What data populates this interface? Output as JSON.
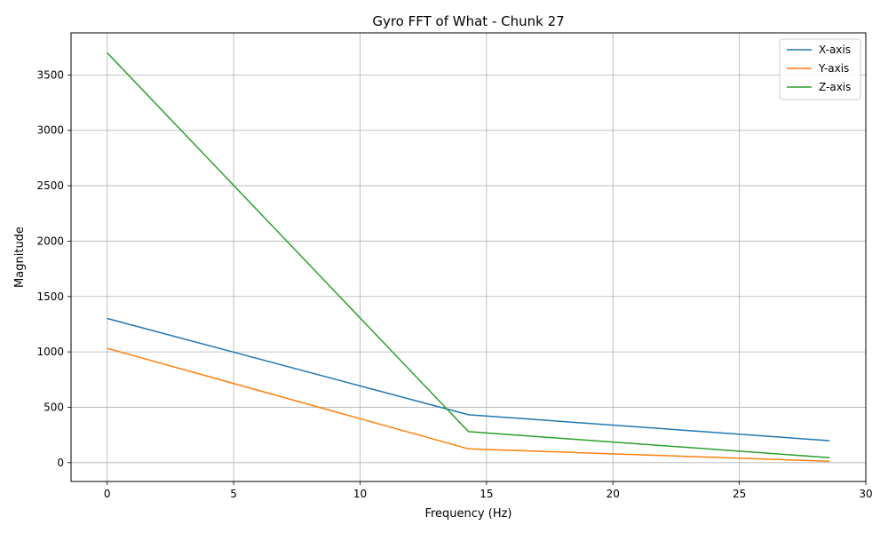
{
  "chart_data": {
    "type": "line",
    "title": "Gyro FFT of What - Chunk 27",
    "xlabel": "Frequency (Hz)",
    "ylabel": "Magnitude",
    "xlim": [
      -1.43,
      30
    ],
    "ylim": [
      -170,
      3880
    ],
    "xticks": [
      0,
      5,
      10,
      15,
      20,
      25,
      30
    ],
    "yticks": [
      0,
      500,
      1000,
      1500,
      2000,
      2500,
      3000,
      3500
    ],
    "grid": true,
    "legend_position": "top-right",
    "x": [
      0,
      14.29,
      28.57
    ],
    "series": [
      {
        "name": "X-axis",
        "color": "#1f77b4",
        "values": [
          1302,
          432,
          198
        ]
      },
      {
        "name": "Y-axis",
        "color": "#ff7f0e",
        "values": [
          1032,
          124,
          12
        ]
      },
      {
        "name": "Z-axis",
        "color": "#2ca02c",
        "values": [
          3700,
          280,
          45
        ]
      }
    ]
  }
}
